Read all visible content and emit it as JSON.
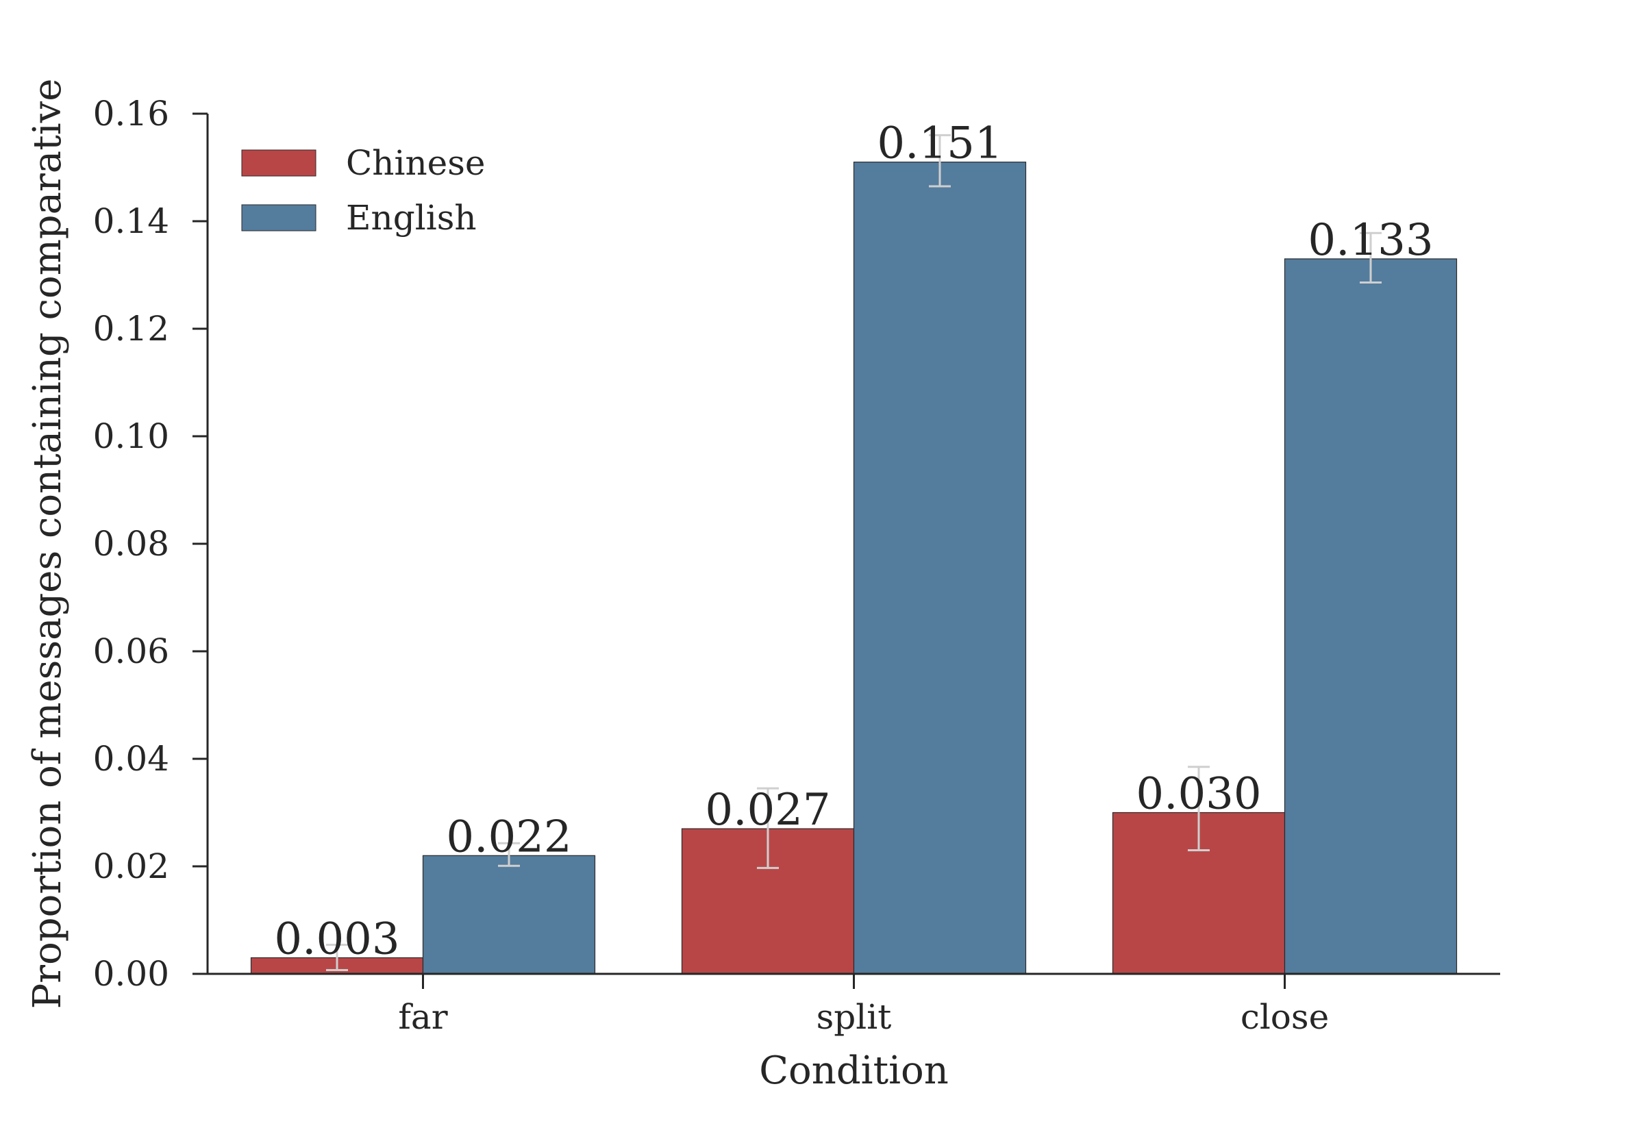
{
  "chart_data": {
    "type": "bar",
    "categories": [
      "far",
      "split",
      "close"
    ],
    "xlabel": "Condition",
    "ylabel": "Proportion of messages containing comparative",
    "ylim": [
      0,
      0.16
    ],
    "yticks": [
      "0.00",
      "0.02",
      "0.04",
      "0.06",
      "0.08",
      "0.10",
      "0.12",
      "0.14",
      "0.16"
    ],
    "grid": false,
    "legend_position": "top-left",
    "series": [
      {
        "name": "Chinese",
        "color": "#b94647",
        "values": [
          0.003,
          0.027,
          0.03
        ],
        "value_labels": [
          "0.003",
          "0.027",
          "0.030"
        ],
        "error_low": [
          0.0007,
          0.0197,
          0.023
        ],
        "error_high": [
          0.0054,
          0.0345,
          0.0385
        ]
      },
      {
        "name": "English",
        "color": "#547c9d",
        "values": [
          0.022,
          0.151,
          0.133
        ],
        "value_labels": [
          "0.022",
          "0.151",
          "0.133"
        ],
        "error_low": [
          0.0201,
          0.1465,
          0.1286
        ],
        "error_high": [
          0.0243,
          0.156,
          0.1378
        ]
      }
    ]
  }
}
